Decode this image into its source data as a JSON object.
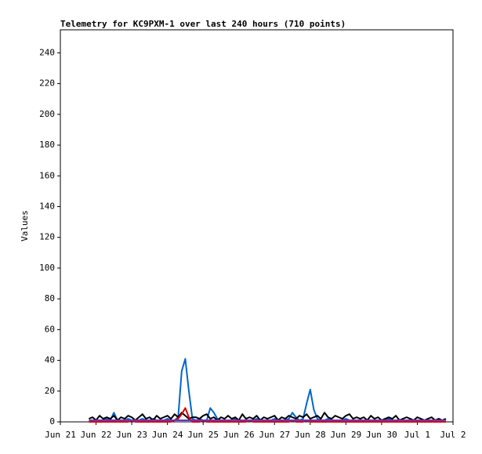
{
  "chart_data": {
    "type": "line",
    "title": "Telemetry for KC9PXM-1 over last 240 hours (710 points)",
    "y_label": "Values",
    "xlim": [
      0,
      11
    ],
    "xticks": [
      {
        "value": 0,
        "label": "Jun 21"
      },
      {
        "value": 1,
        "label": "Jun 22"
      },
      {
        "value": 2,
        "label": "Jun 23"
      },
      {
        "value": 3,
        "label": "Jun 24"
      },
      {
        "value": 4,
        "label": "Jun 25"
      },
      {
        "value": 5,
        "label": "Jun 26"
      },
      {
        "value": 6,
        "label": "Jun 27"
      },
      {
        "value": 7,
        "label": "Jun 28"
      },
      {
        "value": 8,
        "label": "Jun 29"
      },
      {
        "value": 9,
        "label": "Jun 30"
      },
      {
        "value": 10,
        "label": "Jul 1"
      },
      {
        "value": 11,
        "label": "Jul 2"
      }
    ],
    "ylim": [
      0,
      255
    ],
    "yticks": [
      0,
      20,
      40,
      60,
      80,
      100,
      120,
      140,
      160,
      180,
      200,
      220,
      240
    ],
    "x": [
      0.8,
      0.9,
      1,
      1.1,
      1.2,
      1.3,
      1.4,
      1.5,
      1.6,
      1.7,
      1.8,
      1.9,
      2,
      2.1,
      2.2,
      2.3,
      2.4,
      2.5,
      2.6,
      2.7,
      2.8,
      2.9,
      3,
      3.1,
      3.2,
      3.3,
      3.4,
      3.5,
      3.6,
      3.7,
      3.8,
      3.9,
      4,
      4.1,
      4.2,
      4.3,
      4.4,
      4.5,
      4.6,
      4.7,
      4.8,
      4.9,
      5,
      5.1,
      5.2,
      5.3,
      5.4,
      5.5,
      5.6,
      5.7,
      5.8,
      5.9,
      6,
      6.1,
      6.2,
      6.3,
      6.4,
      6.5,
      6.6,
      6.7,
      6.8,
      6.9,
      7,
      7.1,
      7.2,
      7.3,
      7.4,
      7.5,
      7.6,
      7.7,
      7.8,
      7.9,
      8,
      8.1,
      8.2,
      8.3,
      8.4,
      8.5,
      8.6,
      8.7,
      8.8,
      8.9,
      9,
      9.1,
      9.2,
      9.3,
      9.4,
      9.5,
      9.6,
      9.7,
      9.8,
      9.9,
      10,
      10.1,
      10.2,
      10.3,
      10.4,
      10.5,
      10.6,
      10.7,
      10.8
    ],
    "series": [
      {
        "color": "#0066cc",
        "values": [
          1,
          1,
          1,
          1,
          1,
          2,
          1,
          6,
          1,
          1,
          1,
          2,
          1,
          1,
          1,
          2,
          1,
          1,
          2,
          1,
          1,
          1,
          2,
          1,
          1,
          3,
          33,
          41,
          20,
          2,
          1,
          2,
          1,
          1,
          9,
          6,
          2,
          1,
          1,
          1,
          1,
          2,
          1,
          1,
          1,
          1,
          1,
          2,
          1,
          1,
          1,
          1,
          2,
          1,
          1,
          1,
          2,
          6,
          3,
          1,
          2,
          12,
          21,
          8,
          2,
          1,
          1,
          2,
          1,
          1,
          1,
          1,
          2,
          1,
          1,
          1,
          1,
          1,
          1,
          1,
          1,
          1,
          1,
          1,
          2,
          1,
          1,
          1,
          1,
          1,
          1,
          1,
          1,
          1,
          1,
          1,
          1,
          1,
          1,
          1,
          1
        ]
      },
      {
        "color": "#000000",
        "values": [
          2,
          3,
          1,
          4,
          2,
          3,
          2,
          4,
          1,
          3,
          2,
          4,
          3,
          1,
          3,
          5,
          2,
          3,
          1,
          4,
          2,
          3,
          4,
          2,
          5,
          3,
          6,
          4,
          2,
          3,
          3,
          2,
          4,
          5,
          2,
          3,
          1,
          3,
          2,
          4,
          2,
          3,
          1,
          5,
          2,
          3,
          2,
          4,
          1,
          3,
          2,
          3,
          4,
          1,
          3,
          2,
          4,
          3,
          2,
          4,
          3,
          5,
          2,
          3,
          4,
          2,
          6,
          3,
          2,
          4,
          3,
          2,
          4,
          5,
          2,
          3,
          2,
          3,
          1,
          4,
          2,
          3,
          1,
          2,
          3,
          2,
          4,
          1,
          2,
          3,
          2,
          1,
          3,
          2,
          1,
          2,
          3,
          1,
          2,
          1,
          2
        ]
      },
      {
        "color": "#dd0000",
        "values": [
          0,
          0,
          0,
          0,
          0,
          0,
          0,
          0,
          0,
          0,
          0,
          0,
          1,
          0,
          0,
          0,
          0,
          0,
          0,
          0,
          0,
          0,
          0,
          0,
          1,
          2,
          5,
          9,
          3,
          0,
          0,
          0,
          1,
          0,
          0,
          0,
          0,
          0,
          0,
          0,
          0,
          0,
          0,
          0,
          0,
          1,
          0,
          0,
          0,
          0,
          0,
          0,
          0,
          0,
          0,
          0,
          0,
          1,
          0,
          0,
          0,
          1,
          0,
          0,
          0,
          0,
          0,
          0,
          0,
          0,
          0,
          0,
          0,
          0,
          0,
          0,
          0,
          0,
          0,
          0,
          0,
          0,
          0,
          0,
          0,
          0,
          0,
          0,
          0,
          0,
          0,
          0,
          0,
          0,
          0,
          0,
          0,
          0,
          0,
          0,
          0
        ]
      },
      {
        "color": "#6633cc",
        "values": [
          1,
          1,
          1,
          1,
          1,
          1,
          1,
          1,
          1,
          1,
          1,
          1,
          1,
          1,
          1,
          1,
          1,
          1,
          1,
          1,
          1,
          1,
          1,
          1,
          1,
          1,
          1,
          1,
          1,
          1,
          1,
          1,
          1,
          1,
          1,
          1,
          1,
          1,
          1,
          1,
          1,
          1,
          1,
          1,
          1,
          1,
          1,
          1,
          1,
          1,
          1,
          1,
          1,
          1,
          1,
          1,
          1,
          1,
          1,
          1,
          1,
          1,
          1,
          1,
          1,
          1,
          1,
          1,
          1,
          1,
          1,
          1,
          1,
          1,
          1,
          1,
          1,
          1,
          1,
          1,
          1,
          1,
          1,
          1,
          1,
          1,
          1,
          1,
          1,
          1,
          1,
          1,
          1,
          1,
          1,
          1,
          1,
          1,
          1,
          1,
          1
        ]
      }
    ]
  }
}
